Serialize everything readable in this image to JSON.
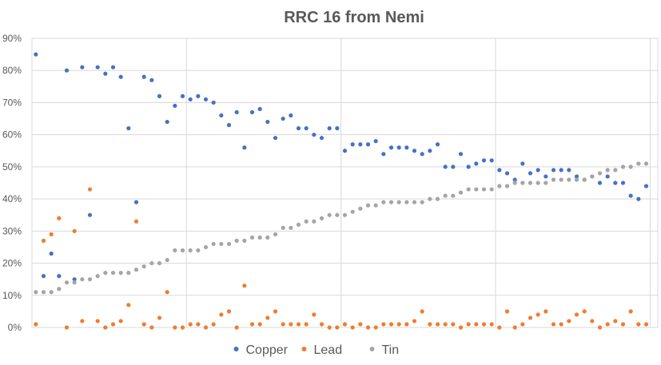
{
  "chart_data": {
    "type": "scatter",
    "title": "RRC 16 from Nemi",
    "xlabel": "",
    "ylabel": "",
    "ylim": [
      0,
      0.9
    ],
    "yticks": [
      "0%",
      "10%",
      "20%",
      "30%",
      "40%",
      "50%",
      "60%",
      "70%",
      "80%",
      "90%"
    ],
    "grid": {
      "horizontal": true,
      "vertical": true
    },
    "legend_position": "bottom",
    "x": [
      1,
      2,
      3,
      4,
      5,
      6,
      7,
      8,
      9,
      10,
      11,
      12,
      13,
      14,
      15,
      16,
      17,
      18,
      19,
      20,
      21,
      22,
      23,
      24,
      25,
      26,
      27,
      28,
      29,
      30,
      31,
      32,
      33,
      34,
      35,
      36,
      37,
      38,
      39,
      40,
      41,
      42,
      43,
      44,
      45,
      46,
      47,
      48,
      49,
      50,
      51,
      52,
      53,
      54,
      55,
      56,
      57,
      58,
      59,
      60,
      61,
      62,
      63,
      64,
      65,
      66,
      67,
      68,
      69,
      70,
      71,
      72,
      73,
      74,
      75,
      76,
      77,
      78,
      79,
      80,
      81
    ],
    "series": [
      {
        "name": "Copper",
        "color": "#4472C4",
        "values": [
          0.85,
          0.16,
          0.23,
          0.16,
          0.8,
          0.15,
          0.81,
          0.35,
          0.81,
          0.79,
          0.81,
          0.78,
          0.62,
          0.39,
          0.78,
          0.77,
          0.72,
          0.64,
          0.69,
          0.72,
          0.71,
          0.72,
          0.71,
          0.7,
          0.66,
          0.63,
          0.67,
          0.56,
          0.67,
          0.68,
          0.64,
          0.59,
          0.65,
          0.66,
          0.62,
          0.62,
          0.6,
          0.59,
          0.62,
          0.62,
          0.55,
          0.57,
          0.57,
          0.57,
          0.58,
          0.54,
          0.56,
          0.56,
          0.56,
          0.55,
          0.54,
          0.55,
          0.57,
          0.5,
          0.5,
          0.54,
          0.5,
          0.51,
          0.52,
          0.52,
          0.49,
          0.48,
          0.46,
          0.51,
          0.48,
          0.49,
          0.47,
          0.49,
          0.49,
          0.49,
          0.47,
          0.46,
          0.47,
          0.45,
          0.47,
          0.45,
          0.45,
          0.41,
          0.4,
          0.44,
          null
        ]
      },
      {
        "name": "Lead",
        "color": "#ED7D31",
        "values": [
          0.01,
          0.27,
          0.29,
          0.34,
          0.0,
          0.3,
          0.02,
          0.43,
          0.02,
          0.0,
          0.01,
          0.02,
          0.07,
          0.33,
          0.01,
          0.0,
          0.03,
          0.11,
          0.0,
          0.0,
          0.01,
          0.01,
          0.0,
          0.01,
          0.04,
          0.05,
          0.0,
          0.13,
          0.01,
          0.01,
          0.03,
          0.05,
          0.01,
          0.01,
          0.01,
          0.01,
          0.04,
          0.01,
          0.0,
          0.0,
          0.01,
          0.0,
          0.01,
          0.0,
          0.0,
          0.01,
          0.01,
          0.01,
          0.01,
          0.02,
          0.05,
          0.01,
          0.01,
          0.01,
          0.01,
          0.0,
          0.01,
          0.01,
          0.01,
          0.01,
          0.0,
          0.05,
          0.0,
          0.01,
          0.03,
          0.04,
          0.05,
          0.01,
          0.01,
          0.02,
          0.04,
          0.05,
          0.02,
          0.0,
          0.01,
          0.02,
          0.01,
          0.05,
          0.01,
          0.01,
          null
        ]
      },
      {
        "name": "Tin",
        "color": "#A5A5A5",
        "values": [
          0.11,
          0.11,
          0.11,
          0.12,
          0.14,
          0.14,
          0.15,
          0.15,
          0.16,
          0.17,
          0.17,
          0.17,
          0.17,
          0.18,
          0.19,
          0.2,
          0.2,
          0.21,
          0.24,
          0.24,
          0.24,
          0.24,
          0.25,
          0.26,
          0.26,
          0.26,
          0.27,
          0.27,
          0.28,
          0.28,
          0.28,
          0.29,
          0.31,
          0.31,
          0.32,
          0.33,
          0.33,
          0.34,
          0.35,
          0.35,
          0.35,
          0.36,
          0.37,
          0.38,
          0.38,
          0.39,
          0.39,
          0.39,
          0.39,
          0.39,
          0.39,
          0.4,
          0.4,
          0.41,
          0.41,
          0.42,
          0.43,
          0.43,
          0.43,
          0.43,
          0.44,
          0.44,
          0.45,
          0.45,
          0.45,
          0.45,
          0.45,
          0.46,
          0.46,
          0.46,
          0.46,
          0.46,
          0.47,
          0.48,
          0.49,
          0.49,
          0.5,
          0.5,
          0.51,
          0.51,
          null
        ]
      }
    ]
  }
}
